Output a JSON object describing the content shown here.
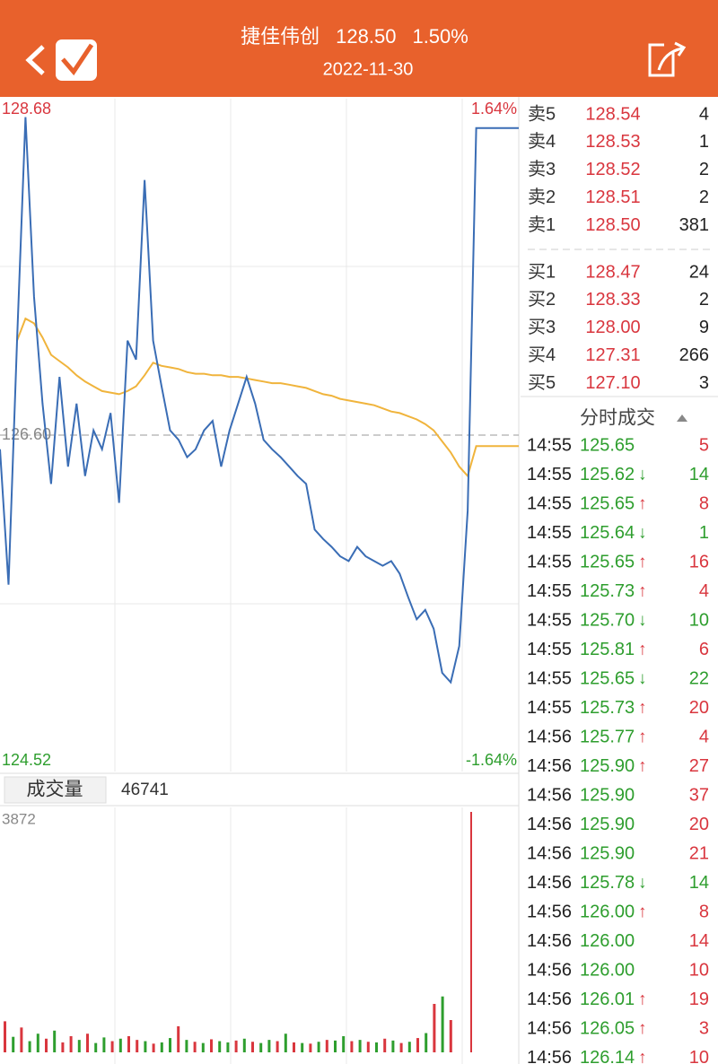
{
  "header": {
    "title": "捷佳伟创",
    "price": "128.50",
    "change": "1.50%",
    "date": "2022-11-30"
  },
  "chart_data": [
    {
      "type": "line",
      "ylim": [
        124.52,
        128.68
      ],
      "yticks": [
        124.52,
        {
          "value": 126.6,
          "label": "126.60"
        },
        128.68
      ],
      "y2lim": [
        -1.64,
        1.64
      ],
      "y2ticks": [
        {
          "value": -1.64,
          "label": "-1.64%"
        },
        {
          "value": 1.64,
          "label": "1.64%"
        }
      ],
      "series": [
        {
          "color": "#3a6db5",
          "values": [
            126.51,
            125.65,
            127.2,
            128.62,
            127.48,
            126.8,
            126.29,
            126.97,
            126.4,
            126.8,
            126.34,
            126.63,
            126.51,
            126.74,
            126.17,
            127.2,
            127.08,
            128.22,
            127.2,
            126.91,
            126.63,
            126.57,
            126.46,
            126.51,
            126.63,
            126.69,
            126.4,
            126.63,
            126.8,
            126.97,
            126.8,
            126.57,
            126.51,
            126.46,
            126.4,
            126.34,
            126.29,
            126.0,
            125.94,
            125.89,
            125.83,
            125.8,
            125.89,
            125.83,
            125.8,
            125.77,
            125.8,
            125.72,
            125.57,
            125.43,
            125.49,
            125.37,
            125.09,
            125.03,
            125.26,
            126.12,
            128.55,
            128.55,
            128.55,
            128.55,
            128.55,
            128.55
          ]
        },
        {
          "color": "#f0b43c",
          "values": [
            null,
            null,
            127.2,
            127.34,
            127.31,
            127.22,
            127.11,
            127.07,
            127.03,
            126.98,
            126.94,
            126.91,
            126.88,
            126.87,
            126.86,
            126.88,
            126.91,
            126.98,
            127.06,
            127.04,
            127.03,
            127.02,
            127.0,
            126.99,
            126.99,
            126.98,
            126.98,
            126.97,
            126.97,
            126.96,
            126.95,
            126.94,
            126.93,
            126.93,
            126.92,
            126.91,
            126.9,
            126.88,
            126.86,
            126.85,
            126.83,
            126.82,
            126.81,
            126.8,
            126.79,
            126.77,
            126.75,
            126.74,
            126.72,
            126.7,
            126.67,
            126.63,
            126.56,
            126.49,
            126.4,
            126.34,
            126.53,
            126.53,
            126.53,
            126.53,
            126.53,
            126.53
          ]
        }
      ]
    },
    {
      "type": "bar",
      "title": "成交量",
      "total": 46741,
      "ylim": [
        0,
        3872
      ],
      "yticks": [
        3872
      ],
      "values": [
        500,
        250,
        400,
        180,
        300,
        220,
        350,
        160,
        260,
        200,
        300,
        150,
        240,
        180,
        220,
        260,
        200,
        180,
        140,
        160,
        230,
        420,
        200,
        170,
        150,
        210,
        180,
        160,
        190,
        220,
        170,
        150,
        200,
        180,
        300,
        160,
        150,
        140,
        170,
        200,
        190,
        260,
        180,
        200,
        170,
        160,
        220,
        190,
        150,
        170,
        230,
        310,
        780,
        900,
        520,
        3872
      ],
      "colors": [
        "#d9363e",
        "#2e9e2e",
        "#d9363e",
        "#2e9e2e",
        "#2e9e2e",
        "#d9363e",
        "#2e9e2e",
        "#d9363e",
        "#d9363e",
        "#2e9e2e",
        "#d9363e",
        "#2e9e2e",
        "#2e9e2e",
        "#d9363e",
        "#2e9e2e",
        "#d9363e",
        "#d9363e",
        "#2e9e2e",
        "#d9363e",
        "#2e9e2e",
        "#2e9e2e",
        "#d9363e",
        "#2e9e2e",
        "#d9363e",
        "#2e9e2e",
        "#d9363e",
        "#2e9e2e",
        "#2e9e2e",
        "#d9363e",
        "#2e9e2e",
        "#d9363e",
        "#2e9e2e",
        "#2e9e2e",
        "#d9363e",
        "#2e9e2e",
        "#d9363e",
        "#2e9e2e",
        "#d9363e",
        "#2e9e2e",
        "#d9363e",
        "#2e9e2e",
        "#2e9e2e",
        "#d9363e",
        "#2e9e2e",
        "#d9363e",
        "#2e9e2e",
        "#d9363e",
        "#2e9e2e",
        "#d9363e",
        "#2e9e2e",
        "#d9363e",
        "#2e9e2e",
        "#d9363e",
        "#2e9e2e",
        "#d9363e",
        "#d9363e"
      ]
    }
  ],
  "order_book": {
    "sell": [
      [
        "卖5",
        "128.54",
        "4"
      ],
      [
        "卖4",
        "128.53",
        "1"
      ],
      [
        "卖3",
        "128.52",
        "2"
      ],
      [
        "卖2",
        "128.51",
        "2"
      ],
      [
        "卖1",
        "128.50",
        "381"
      ]
    ],
    "buy": [
      [
        "买1",
        "128.47",
        "24"
      ],
      [
        "买2",
        "128.33",
        "2"
      ],
      [
        "买3",
        "128.00",
        "9"
      ],
      [
        "买4",
        "127.31",
        "266"
      ],
      [
        "买5",
        "127.10",
        "3"
      ]
    ]
  },
  "trades": {
    "title": "分时成交",
    "rows": [
      {
        "time": "14:55",
        "price": "125.65",
        "volume": "5",
        "color": "#d9363e"
      },
      {
        "time": "14:55",
        "price": "125.62",
        "arrow": "↓",
        "volume": "14",
        "color": "#2e9e2e"
      },
      {
        "time": "14:55",
        "price": "125.65",
        "arrow": "↑",
        "volume": "8",
        "color": "#d9363e"
      },
      {
        "time": "14:55",
        "price": "125.64",
        "arrow": "↓",
        "volume": "1",
        "color": "#2e9e2e"
      },
      {
        "time": "14:55",
        "price": "125.65",
        "arrow": "↑",
        "volume": "16",
        "color": "#d9363e"
      },
      {
        "time": "14:55",
        "price": "125.73",
        "arrow": "↑",
        "volume": "4",
        "color": "#d9363e"
      },
      {
        "time": "14:55",
        "price": "125.70",
        "arrow": "↓",
        "volume": "10",
        "color": "#2e9e2e"
      },
      {
        "time": "14:55",
        "price": "125.81",
        "arrow": "↑",
        "volume": "6",
        "color": "#d9363e"
      },
      {
        "time": "14:55",
        "price": "125.65",
        "arrow": "↓",
        "volume": "22",
        "color": "#2e9e2e"
      },
      {
        "time": "14:55",
        "price": "125.73",
        "arrow": "↑",
        "volume": "20",
        "color": "#d9363e"
      },
      {
        "time": "14:56",
        "price": "125.77",
        "arrow": "↑",
        "volume": "4",
        "color": "#d9363e"
      },
      {
        "time": "14:56",
        "price": "125.90",
        "arrow": "↑",
        "volume": "27",
        "color": "#d9363e"
      },
      {
        "time": "14:56",
        "price": "125.90",
        "volume": "37",
        "color": "#d9363e"
      },
      {
        "time": "14:56",
        "price": "125.90",
        "volume": "20",
        "color": "#d9363e"
      },
      {
        "time": "14:56",
        "price": "125.90",
        "volume": "21",
        "color": "#d9363e"
      },
      {
        "time": "14:56",
        "price": "125.78",
        "arrow": "↓",
        "volume": "14",
        "color": "#2e9e2e"
      },
      {
        "time": "14:56",
        "price": "126.00",
        "arrow": "↑",
        "volume": "8",
        "color": "#d9363e"
      },
      {
        "time": "14:56",
        "price": "126.00",
        "volume": "14",
        "color": "#d9363e"
      },
      {
        "time": "14:56",
        "price": "126.00",
        "volume": "10",
        "color": "#d9363e"
      },
      {
        "time": "14:56",
        "price": "126.01",
        "arrow": "↑",
        "volume": "19",
        "color": "#d9363e"
      },
      {
        "time": "14:56",
        "price": "126.05",
        "arrow": "↑",
        "volume": "3",
        "color": "#d9363e"
      },
      {
        "time": "14:56",
        "price": "126.14",
        "arrow": "↑",
        "volume": "10",
        "color": "#d9363e"
      }
    ]
  }
}
